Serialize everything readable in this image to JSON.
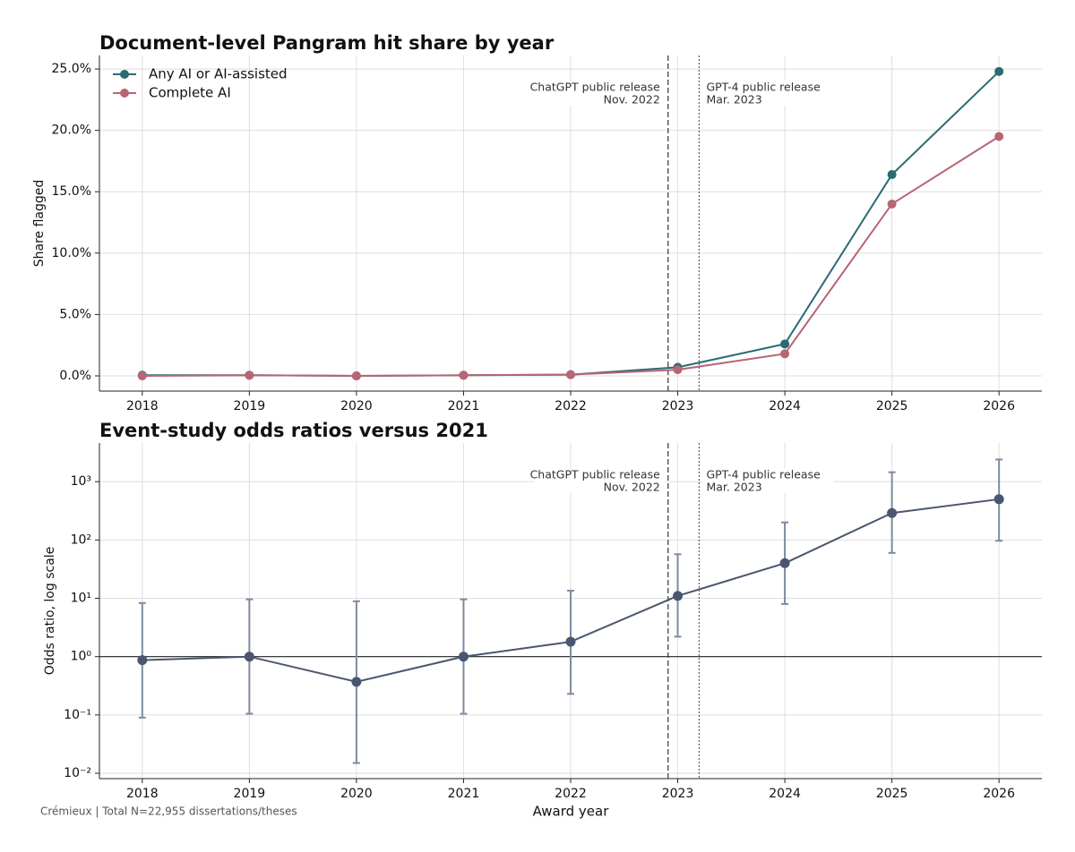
{
  "footer": "Crémieux | Total N=22,955 dissertations/theses",
  "chart_data": [
    {
      "type": "line",
      "title": "Document-level Pangram hit share by year",
      "ylabel": "Share flagged",
      "x": [
        2018,
        2019,
        2020,
        2021,
        2022,
        2023,
        2024,
        2025,
        2026
      ],
      "series": [
        {
          "name": "Any AI or AI-assisted",
          "color": "#2a6b73",
          "values": [
            0.05,
            0.05,
            0.0,
            0.05,
            0.1,
            0.7,
            2.6,
            16.4,
            24.8
          ]
        },
        {
          "name": "Complete AI",
          "color": "#b86574",
          "values": [
            0.0,
            0.05,
            0.0,
            0.05,
            0.1,
            0.5,
            1.8,
            14.0,
            19.5
          ]
        }
      ],
      "xlim": [
        2017.6,
        2026.4
      ],
      "xticks": [
        2018,
        2019,
        2020,
        2021,
        2022,
        2023,
        2024,
        2025,
        2026
      ],
      "ylim": [
        -1.24,
        26.1
      ],
      "yticks": [
        {
          "value": 0,
          "label": "0.0%"
        },
        {
          "value": 5,
          "label": "5.0%"
        },
        {
          "value": 10,
          "label": "10.0%"
        },
        {
          "value": 15,
          "label": "15.0%"
        },
        {
          "value": 20,
          "label": "20.0%"
        },
        {
          "value": 25,
          "label": "25.0%"
        }
      ],
      "grid": true,
      "legend": "upper-left",
      "annotations": [
        {
          "x": 2022.91,
          "style": "dashed",
          "side": "left",
          "lines": [
            "ChatGPT public release",
            "Nov. 2022"
          ]
        },
        {
          "x": 2023.2,
          "style": "dotted",
          "side": "right",
          "lines": [
            "GPT-4 public release",
            "Mar. 2023"
          ]
        }
      ]
    },
    {
      "type": "errorbar",
      "title": "Event-study odds ratios versus 2021",
      "ylabel": "Odds ratio, log scale",
      "xlabel": "Award year",
      "x": [
        2018,
        2019,
        2020,
        2021,
        2022,
        2023,
        2024,
        2025,
        2026
      ],
      "values": [
        0.87,
        1.0,
        0.37,
        1.0,
        1.8,
        11,
        40,
        290,
        500
      ],
      "ci_low": [
        0.09,
        0.105,
        0.015,
        0.105,
        0.23,
        2.2,
        8,
        60,
        97
      ],
      "ci_high": [
        8.3,
        9.6,
        8.9,
        9.6,
        13.5,
        57,
        200,
        1450,
        2400
      ],
      "color": "#4a5670",
      "error_color": "#7d8ba0",
      "xlim": [
        2017.6,
        2026.4
      ],
      "xticks": [
        2018,
        2019,
        2020,
        2021,
        2022,
        2023,
        2024,
        2025,
        2026
      ],
      "log_y": true,
      "ylim": [
        0.0081,
        4600
      ],
      "yticks": [
        {
          "value": 0.01,
          "label": "10⁻²"
        },
        {
          "value": 0.1,
          "label": "10⁻¹"
        },
        {
          "value": 1,
          "label": "10⁰"
        },
        {
          "value": 10,
          "label": "10¹"
        },
        {
          "value": 100,
          "label": "10²"
        },
        {
          "value": 1000,
          "label": "10³"
        }
      ],
      "grid": true,
      "hline": 1,
      "annotations": [
        {
          "x": 2022.91,
          "style": "dashed",
          "side": "left",
          "lines": [
            "ChatGPT public release",
            "Nov. 2022"
          ]
        },
        {
          "x": 2023.2,
          "style": "dotted",
          "side": "right",
          "lines": [
            "GPT-4 public release",
            "Mar. 2023"
          ]
        }
      ]
    }
  ]
}
